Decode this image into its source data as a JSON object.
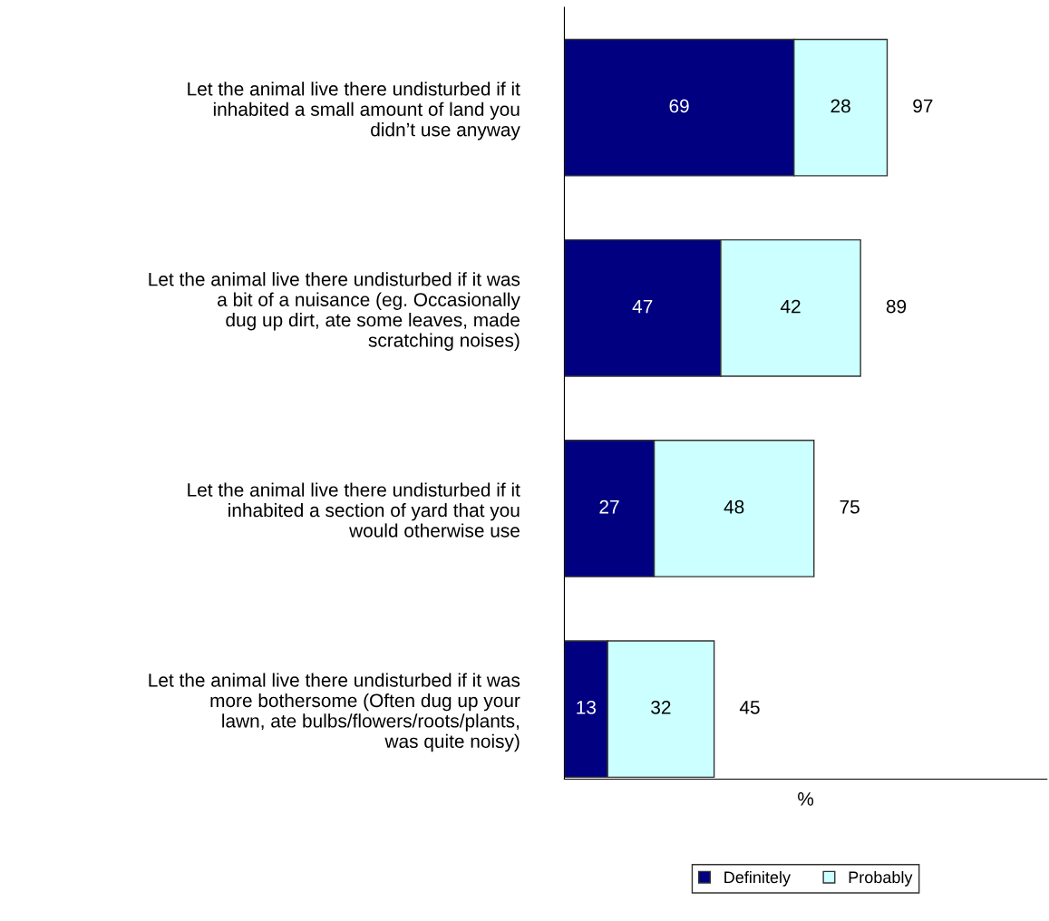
{
  "chart_data": {
    "type": "bar",
    "orientation": "horizontal",
    "stacked": true,
    "xlabel": "%",
    "categories": [
      "Let the animal live there undisturbed if it\ninhabited a small amount of land you\ndidn’t use anyway",
      "Let the animal live there undisturbed if it was\na bit of a nuisance (eg. Occasionally\ndug up dirt, ate some leaves, made\nscratching noises)",
      "Let the animal live there undisturbed if it\ninhabited a section of yard that you\nwould otherwise use",
      "Let the animal live there undisturbed if it was\nmore bothersome (Often dug up your\nlawn, ate bulbs/flowers/roots/plants,\nwas quite noisy)"
    ],
    "series": [
      {
        "name": "Definitely",
        "color": "#000080",
        "values": [
          69,
          47,
          27,
          13
        ]
      },
      {
        "name": "Probably",
        "color": "#ccffff",
        "values": [
          28,
          42,
          48,
          32
        ]
      }
    ],
    "xlim": [
      0,
      145
    ],
    "data_labels": true,
    "totals": [
      "97",
      "89",
      "75",
      "45"
    ],
    "legend": "bottom",
    "grid": false
  }
}
